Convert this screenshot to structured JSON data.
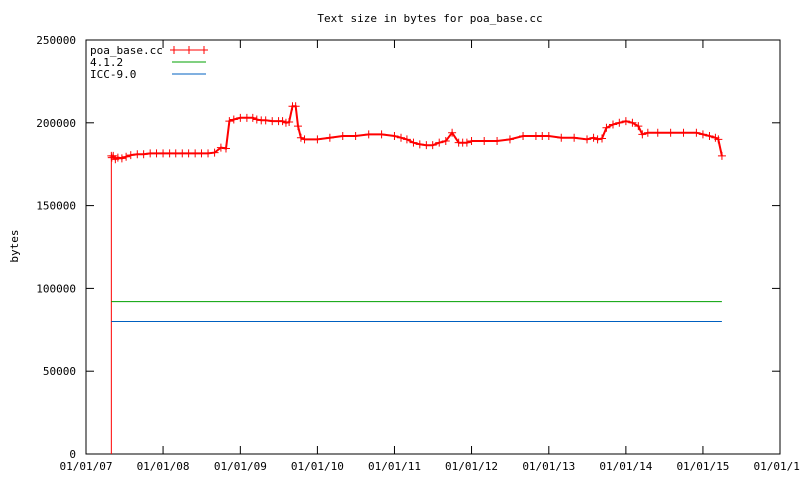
{
  "chart_data": {
    "type": "line",
    "title": "Text size in bytes for poa_base.cc",
    "xlabel": "",
    "ylabel": "bytes",
    "ylim": [
      0,
      250000
    ],
    "xlim": [
      "2007-01-01",
      "2016-01-01"
    ],
    "y_ticks": [
      0,
      50000,
      100000,
      150000,
      200000,
      250000
    ],
    "x_ticks": [
      "2007-01-01",
      "2008-01-01",
      "2009-01-01",
      "2010-01-01",
      "2011-01-01",
      "2012-01-01",
      "2013-01-01",
      "2014-01-01",
      "2015-01-01",
      "2016-01-01"
    ],
    "x_tick_labels": [
      "01/01/07",
      "01/01/08",
      "01/01/09",
      "01/01/10",
      "01/01/11",
      "01/01/12",
      "01/01/13",
      "01/01/14",
      "01/01/15",
      "01/01/16"
    ],
    "legend_position": "top-left",
    "grid": false,
    "series": [
      {
        "name": "poa_base.cc",
        "color": "#ff0000",
        "marker": "plus",
        "x": [
          "2007-05-01",
          "2007-05-03",
          "2007-05-10",
          "2007-05-20",
          "2007-06-01",
          "2007-06-20",
          "2007-07-10",
          "2007-08-01",
          "2007-09-01",
          "2007-10-01",
          "2007-11-01",
          "2007-12-01",
          "2008-01-01",
          "2008-02-01",
          "2008-03-01",
          "2008-04-01",
          "2008-05-01",
          "2008-06-01",
          "2008-07-01",
          "2008-08-01",
          "2008-09-01",
          "2008-10-01",
          "2008-10-25",
          "2008-11-10",
          "2008-12-01",
          "2009-01-01",
          "2009-02-01",
          "2009-03-01",
          "2009-03-20",
          "2009-04-10",
          "2009-05-01",
          "2009-06-01",
          "2009-07-01",
          "2009-07-20",
          "2009-08-05",
          "2009-08-20",
          "2009-09-05",
          "2009-09-20",
          "2009-10-01",
          "2009-10-15",
          "2009-11-01",
          "2010-01-01",
          "2010-03-01",
          "2010-05-01",
          "2010-07-01",
          "2010-09-01",
          "2010-11-01",
          "2011-01-01",
          "2011-02-01",
          "2011-03-01",
          "2011-04-01",
          "2011-05-01",
          "2011-06-01",
          "2011-07-01",
          "2011-08-01",
          "2011-09-01",
          "2011-10-01",
          "2011-11-01",
          "2011-11-20",
          "2011-12-10",
          "2012-01-01",
          "2012-03-01",
          "2012-05-01",
          "2012-07-01",
          "2012-09-01",
          "2012-11-01",
          "2012-12-01",
          "2013-01-01",
          "2013-03-01",
          "2013-05-01",
          "2013-07-01",
          "2013-08-01",
          "2013-08-20",
          "2013-09-10",
          "2013-10-01",
          "2013-11-01",
          "2013-12-01",
          "2014-01-01",
          "2014-02-01",
          "2014-03-01",
          "2014-03-20",
          "2014-04-15",
          "2014-06-01",
          "2014-08-01",
          "2014-10-01",
          "2014-12-01",
          "2015-01-01",
          "2015-02-01",
          "2015-03-01",
          "2015-03-15",
          "2015-04-01"
        ],
        "y": [
          180000,
          179000,
          180000,
          178000,
          179000,
          178500,
          179500,
          180500,
          181000,
          181000,
          181500,
          181500,
          181500,
          181500,
          181500,
          181500,
          181500,
          181500,
          181500,
          181500,
          182000,
          185000,
          184500,
          201000,
          202000,
          203000,
          203000,
          203000,
          202000,
          201500,
          201500,
          201000,
          201000,
          201000,
          200000,
          200500,
          210000,
          210000,
          198000,
          191000,
          190000,
          190000,
          191000,
          192000,
          192000,
          193000,
          193000,
          192000,
          191000,
          190000,
          188000,
          187000,
          186500,
          186500,
          188000,
          189000,
          194000,
          188000,
          188000,
          188000,
          189000,
          189000,
          189000,
          190000,
          192000,
          192000,
          192000,
          192000,
          191000,
          191000,
          190000,
          191000,
          190000,
          190500,
          197000,
          199000,
          200000,
          201000,
          200000,
          198000,
          193000,
          194000,
          194000,
          194000,
          194000,
          194000,
          193000,
          192000,
          191000,
          190000,
          180000
        ]
      },
      {
        "name": "4.1.2",
        "color": "#00a000",
        "marker": "none",
        "x": [
          "2007-05-01",
          "2015-04-01"
        ],
        "y": [
          92000,
          92000
        ]
      },
      {
        "name": "ICC-9.0",
        "color": "#0060c0",
        "marker": "none",
        "x": [
          "2007-05-01",
          "2015-04-01"
        ],
        "y": [
          80000,
          80000
        ]
      }
    ]
  }
}
